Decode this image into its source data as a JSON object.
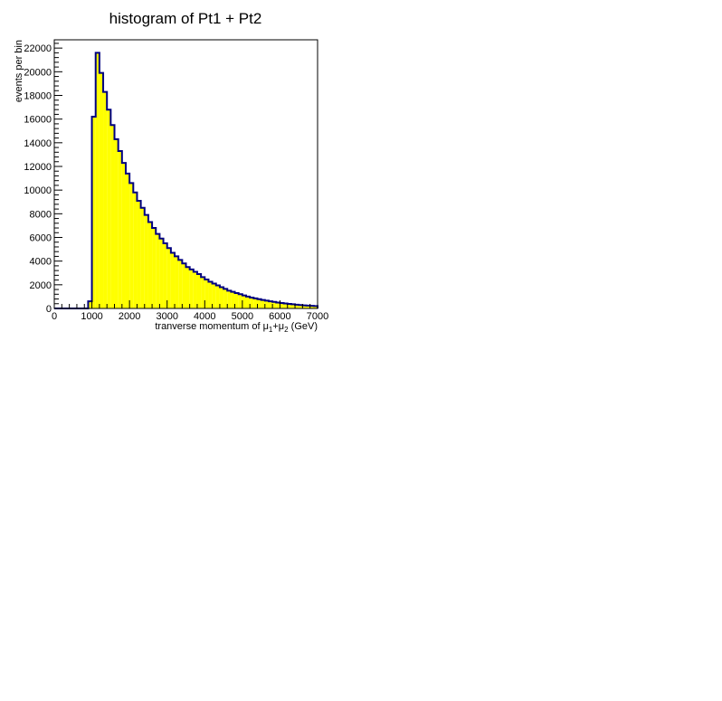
{
  "chart_data": {
    "type": "bar",
    "title": "histogram of Pt1 + Pt2",
    "xlabel": "tranverse momentum of μ1+μ2 (GeV)",
    "xlabel_parts": {
      "prefix": "tranverse momentum of ",
      "mu": "μ",
      "sub1": "1",
      "plus": "+",
      "sub2": "2",
      "suffix": " (GeV)"
    },
    "ylabel": "events per bin",
    "xlim": [
      0,
      7000
    ],
    "ylim": [
      0,
      22700
    ],
    "bin_width": 100,
    "x_ticks": [
      0,
      1000,
      2000,
      3000,
      4000,
      5000,
      6000,
      7000
    ],
    "y_ticks": [
      0,
      2000,
      4000,
      6000,
      8000,
      10000,
      12000,
      14000,
      16000,
      18000,
      20000,
      22000
    ],
    "fill_color": "#ffff00",
    "line_color": "#000080",
    "bin_edges_start": [
      900,
      1000,
      1100,
      1200,
      1300,
      1400,
      1500,
      1600,
      1700,
      1800,
      1900,
      2000,
      2100,
      2200,
      2300,
      2400,
      2500,
      2600,
      2700,
      2800,
      2900,
      3000,
      3100,
      3200,
      3300,
      3400,
      3500,
      3600,
      3700,
      3800,
      3900,
      4000,
      4100,
      4200,
      4300,
      4400,
      4500,
      4600,
      4700,
      4800,
      4900,
      5000,
      5100,
      5200,
      5300,
      5400,
      5500,
      5600,
      5700,
      5800,
      5900,
      6000,
      6100,
      6200,
      6300,
      6400,
      6500,
      6600,
      6700,
      6800,
      6900
    ],
    "values": [
      600,
      16200,
      21600,
      19900,
      18300,
      16800,
      15500,
      14300,
      13300,
      12300,
      11400,
      10600,
      9800,
      9100,
      8500,
      7900,
      7300,
      6800,
      6300,
      5900,
      5500,
      5100,
      4700,
      4400,
      4100,
      3800,
      3500,
      3300,
      3100,
      2900,
      2650,
      2450,
      2250,
      2100,
      1950,
      1800,
      1650,
      1500,
      1400,
      1300,
      1200,
      1100,
      1000,
      920,
      850,
      780,
      720,
      660,
      600,
      550,
      500,
      460,
      420,
      380,
      350,
      320,
      290,
      260,
      240,
      220,
      200
    ]
  }
}
